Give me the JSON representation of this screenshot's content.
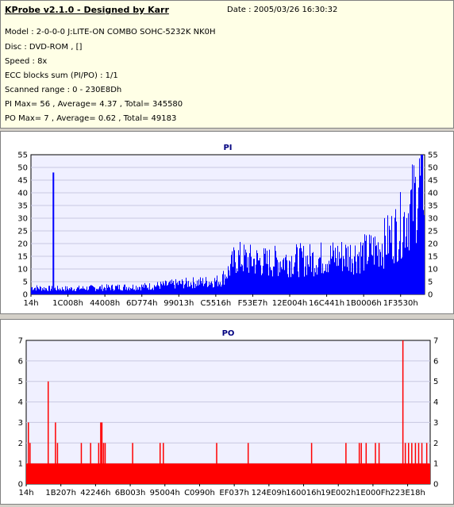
{
  "app": {
    "title": "KProbe v2.1.0 - Designed by Karr",
    "date": "Date : 2005/03/26 16:30:32"
  },
  "info": {
    "model": "Model : 2-0-0-0 J:LITE-ON COMBO SOHC-5232K NK0H",
    "disc": "Disc : DVD-ROM ,  []",
    "speed": "Speed : 8x",
    "ecc": "ECC blocks sum (PI/PO) : 1/1",
    "range": "Scanned range : 0 - 230E8Dh",
    "pi": "PI Max= 56 , Average= 4.37 , Total= 345580",
    "po": "PO Max= 7 , Average= 0.62 , Total= 49183"
  },
  "colors": {
    "pi": "#0000ff",
    "po": "#ff0000",
    "plot_bg": "#f0f0ff",
    "grid": "#c8c8e0"
  },
  "chart_data": [
    {
      "type": "bar",
      "title": "PI",
      "ylim": [
        0,
        55
      ],
      "yticks": [
        0,
        5,
        10,
        15,
        20,
        25,
        30,
        35,
        40,
        45,
        50,
        55
      ],
      "xtick_labels": [
        "14h",
        "1C008h",
        "44008h",
        "6D774h",
        "99013h",
        "C5516h",
        "F53E7h",
        "12E004h",
        "16C441h",
        "1B0006h",
        "1F3530h"
      ],
      "grid": true,
      "profile_x": [
        0,
        0.05,
        0.1,
        0.2,
        0.3,
        0.4,
        0.45,
        0.48,
        0.5,
        0.52,
        0.55,
        0.6,
        0.65,
        0.7,
        0.75,
        0.8,
        0.85,
        0.88,
        0.9,
        0.93,
        0.95,
        0.97,
        0.985,
        1.0
      ],
      "profile_y": [
        3,
        2.5,
        2.5,
        3,
        3.5,
        5,
        5.5,
        6,
        10,
        16,
        15,
        14,
        15,
        15,
        16,
        17,
        18,
        20,
        23,
        28,
        33,
        40,
        47,
        52
      ],
      "spike": {
        "x": 0.055,
        "y": 48
      }
    },
    {
      "type": "bar",
      "title": "PO",
      "ylim": [
        0,
        7
      ],
      "yticks": [
        0,
        1,
        2,
        3,
        4,
        5,
        6,
        7
      ],
      "xtick_labels": [
        "14h",
        "1B207h",
        "42246h",
        "6B003h",
        "95004h",
        "C0990h",
        "EF037h",
        "124E09h",
        "160016h",
        "19E002h",
        "1E000Fh",
        "223E18h"
      ],
      "grid": true,
      "baseline": 1,
      "spikes": [
        {
          "x": 0.004,
          "y": 3
        },
        {
          "x": 0.008,
          "y": 2
        },
        {
          "x": 0.053,
          "y": 5
        },
        {
          "x": 0.071,
          "y": 3
        },
        {
          "x": 0.076,
          "y": 2
        },
        {
          "x": 0.135,
          "y": 2
        },
        {
          "x": 0.158,
          "y": 2
        },
        {
          "x": 0.178,
          "y": 2
        },
        {
          "x": 0.183,
          "y": 3
        },
        {
          "x": 0.186,
          "y": 3
        },
        {
          "x": 0.19,
          "y": 2
        },
        {
          "x": 0.194,
          "y": 2
        },
        {
          "x": 0.262,
          "y": 2
        },
        {
          "x": 0.33,
          "y": 2
        },
        {
          "x": 0.338,
          "y": 2
        },
        {
          "x": 0.47,
          "y": 2
        },
        {
          "x": 0.548,
          "y": 2
        },
        {
          "x": 0.705,
          "y": 2
        },
        {
          "x": 0.79,
          "y": 2
        },
        {
          "x": 0.823,
          "y": 2
        },
        {
          "x": 0.828,
          "y": 2
        },
        {
          "x": 0.84,
          "y": 2
        },
        {
          "x": 0.863,
          "y": 2
        },
        {
          "x": 0.872,
          "y": 2
        },
        {
          "x": 0.931,
          "y": 7
        },
        {
          "x": 0.937,
          "y": 2
        },
        {
          "x": 0.945,
          "y": 2
        },
        {
          "x": 0.953,
          "y": 2
        },
        {
          "x": 0.962,
          "y": 2
        },
        {
          "x": 0.97,
          "y": 2
        },
        {
          "x": 0.978,
          "y": 2
        },
        {
          "x": 0.99,
          "y": 2
        }
      ]
    }
  ]
}
